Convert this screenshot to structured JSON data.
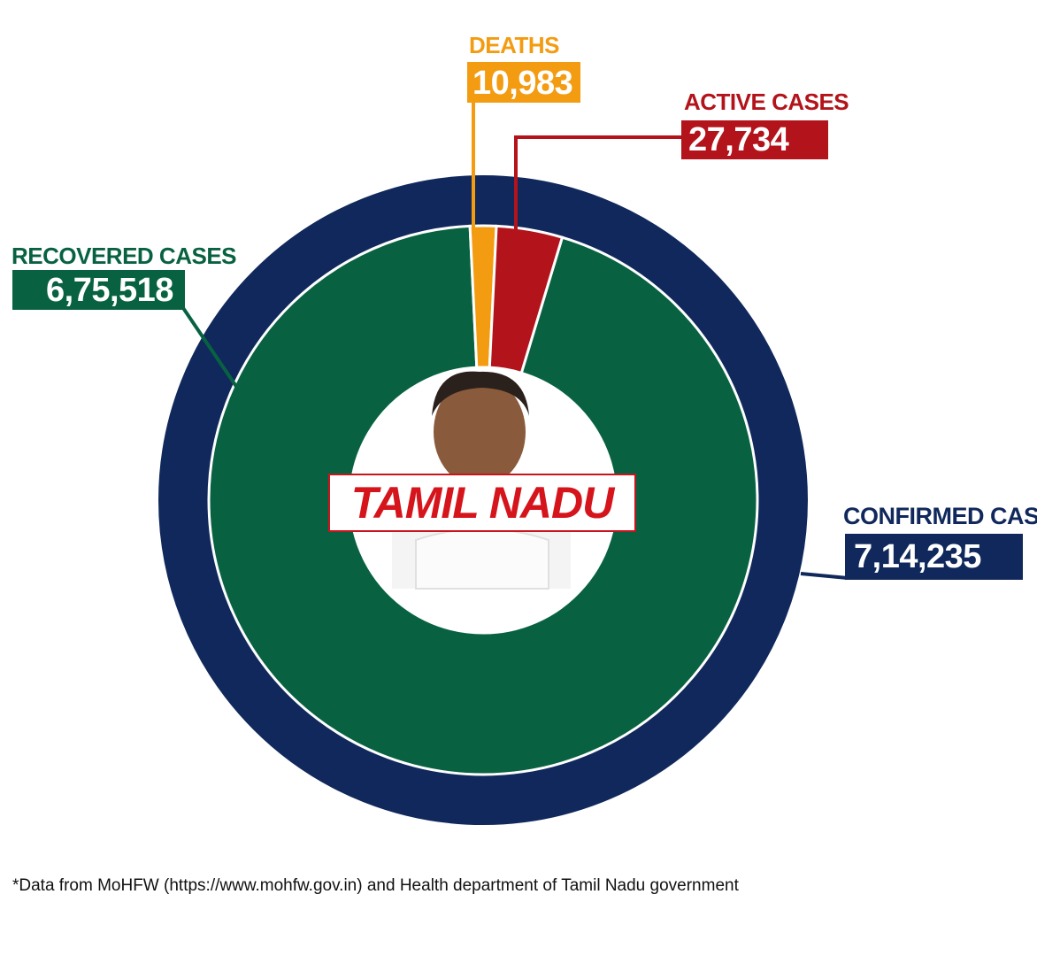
{
  "chart_data": {
    "type": "pie",
    "title": "TAMIL NADU",
    "rings": [
      {
        "name": "outer",
        "slices": [
          {
            "label": "CONFIRMED CASES",
            "display": "7,14,235",
            "value": 714235,
            "color": "#10285b"
          }
        ]
      },
      {
        "name": "inner",
        "slices": [
          {
            "label": "DEATHS",
            "display": "10,983",
            "value": 10983,
            "color": "#f39c12"
          },
          {
            "label": "ACTIVE CASES",
            "display": "27,734",
            "value": 27734,
            "color": "#b3131a"
          },
          {
            "label": "RECOVERED CASES",
            "display": "6,75,518",
            "value": 675518,
            "color": "#086241"
          }
        ]
      }
    ]
  },
  "footnote": "*Data from MoHFW (https://www.mohfw.gov.in) and Health department of Tamil Nadu government"
}
